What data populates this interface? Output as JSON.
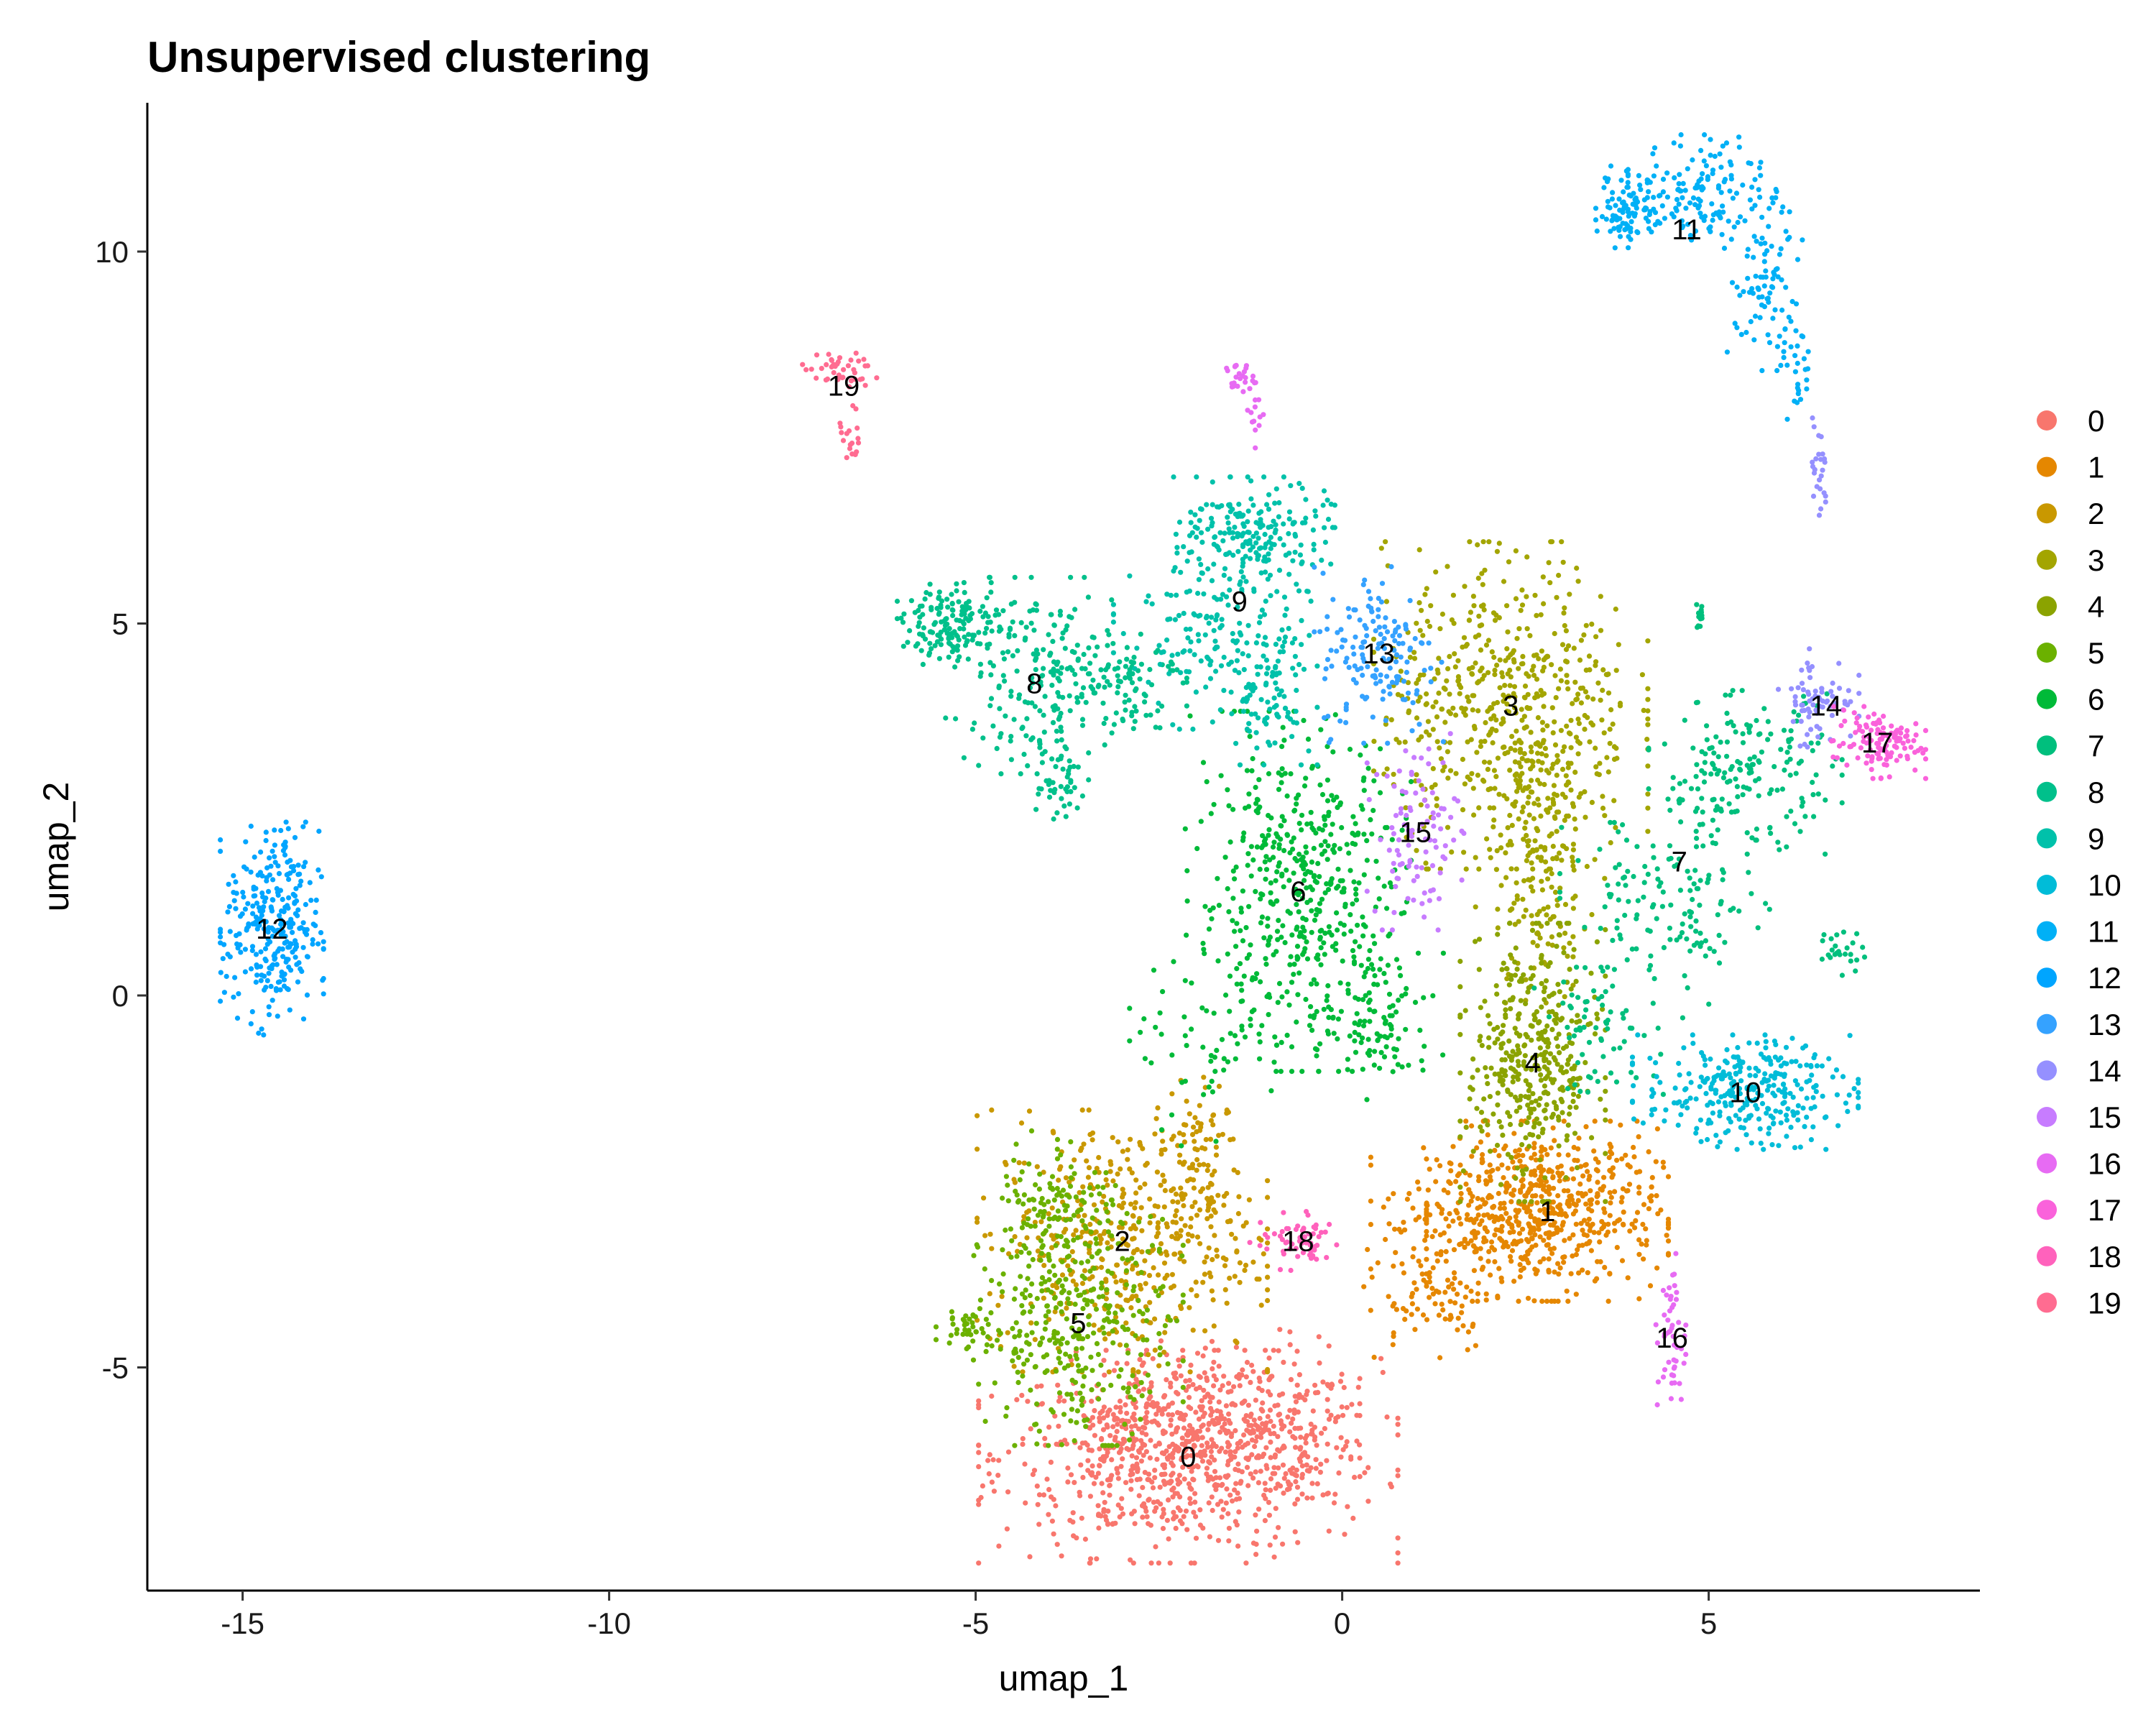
{
  "chart_data": {
    "type": "scatter",
    "title": "Unsupervised clustering",
    "xlabel": "umap_1",
    "ylabel": "umap_2",
    "xlim": [
      -16.3,
      8.7
    ],
    "ylim": [
      -8.0,
      12.0
    ],
    "x_ticks": [
      -15,
      -10,
      -5,
      0,
      5
    ],
    "x_tick_labels": [
      "-15",
      "-10",
      "-5",
      "0",
      "5"
    ],
    "y_ticks": [
      -5,
      0,
      5,
      10
    ],
    "y_tick_labels": [
      "-5",
      "0",
      "5",
      "10"
    ],
    "grid": false,
    "legend_position": "right",
    "clusters": [
      {
        "label": "0",
        "color": "#F8766D",
        "centroid": [
          -2.1,
          -6.2
        ],
        "blobs": [
          [
            -2.1,
            -6.2,
            1.3,
            0.65,
            700
          ],
          [
            -1.3,
            -5.7,
            0.7,
            0.55,
            200
          ],
          [
            -2.9,
            -6.0,
            0.5,
            0.5,
            120
          ]
        ]
      },
      {
        "label": "1",
        "color": "#E58700",
        "centroid": [
          2.8,
          -2.9
        ],
        "blobs": [
          [
            2.8,
            -2.9,
            0.75,
            0.55,
            550
          ],
          [
            1.6,
            -3.0,
            0.55,
            0.45,
            130
          ],
          [
            1.2,
            -4.1,
            0.45,
            0.35,
            70
          ]
        ]
      },
      {
        "label": "2",
        "color": "#C99800",
        "centroid": [
          -3.0,
          -3.3
        ],
        "blobs": [
          [
            -3.0,
            -3.3,
            0.9,
            0.8,
            450
          ],
          [
            -2.0,
            -2.2,
            0.3,
            0.5,
            90
          ]
        ]
      },
      {
        "label": "3",
        "color": "#A3A500",
        "centroid": [
          2.3,
          3.9
        ],
        "blobs": [
          [
            2.3,
            3.9,
            0.85,
            1.0,
            550
          ],
          [
            2.7,
            2.1,
            0.4,
            0.8,
            150
          ],
          [
            2.6,
            1.0,
            0.25,
            0.5,
            50
          ]
        ]
      },
      {
        "label": "4",
        "color": "#8BA300",
        "centroid": [
          2.6,
          -0.9
        ],
        "blobs": [
          [
            2.6,
            -0.9,
            0.45,
            0.85,
            400
          ]
        ]
      },
      {
        "label": "5",
        "color": "#6BB100",
        "centroid": [
          -3.6,
          -4.4
        ],
        "blobs": [
          [
            -3.6,
            -4.4,
            0.65,
            0.75,
            350
          ],
          [
            -3.9,
            -2.7,
            0.4,
            0.4,
            100
          ],
          [
            -5.1,
            -4.5,
            0.2,
            0.15,
            40
          ]
        ]
      },
      {
        "label": "6",
        "color": "#00BA38",
        "centroid": [
          -0.6,
          1.4
        ],
        "blobs": [
          [
            -0.6,
            1.4,
            0.7,
            1.1,
            500
          ],
          [
            0.5,
            -0.3,
            0.4,
            0.5,
            100
          ],
          [
            -1.8,
            -0.7,
            0.5,
            0.6,
            50
          ]
        ]
      },
      {
        "label": "7",
        "color": "#00BF7D",
        "centroid": [
          4.6,
          1.8
        ],
        "blobs": [
          [
            5.5,
            3.0,
            0.6,
            0.5,
            180
          ],
          [
            4.4,
            1.1,
            0.65,
            0.7,
            150
          ],
          [
            3.5,
            -0.5,
            0.4,
            0.4,
            60
          ],
          [
            4.9,
            5.1,
            0.05,
            0.1,
            15
          ],
          [
            6.8,
            0.6,
            0.15,
            0.15,
            25
          ]
        ]
      },
      {
        "label": "8",
        "color": "#00C08B",
        "centroid": [
          -4.2,
          4.2
        ],
        "blobs": [
          [
            -5.3,
            5.0,
            0.35,
            0.25,
            150
          ],
          [
            -4.2,
            4.3,
            0.55,
            0.6,
            180
          ],
          [
            -3.0,
            4.3,
            0.4,
            0.35,
            100
          ],
          [
            -3.9,
            2.9,
            0.2,
            0.3,
            50
          ]
        ]
      },
      {
        "label": "9",
        "color": "#00C1AA",
        "centroid": [
          -1.4,
          5.3
        ],
        "blobs": [
          [
            -1.2,
            6.2,
            0.5,
            0.35,
            200
          ],
          [
            -1.8,
            4.9,
            0.6,
            0.6,
            150
          ],
          [
            -1.0,
            4.2,
            0.3,
            0.5,
            100
          ]
        ]
      },
      {
        "label": "10",
        "color": "#00BCD8",
        "centroid": [
          5.5,
          -1.3
        ],
        "blobs": [
          [
            5.5,
            -1.3,
            0.7,
            0.35,
            300
          ]
        ]
      },
      {
        "label": "11",
        "color": "#00B0F6",
        "centroid": [
          4.7,
          10.3
        ],
        "blobs": [
          [
            3.9,
            10.6,
            0.2,
            0.25,
            90
          ],
          [
            5.0,
            10.8,
            0.5,
            0.35,
            150
          ],
          [
            5.8,
            9.5,
            0.25,
            0.5,
            80
          ],
          [
            6.2,
            8.3,
            0.1,
            0.3,
            25
          ]
        ]
      },
      {
        "label": "12",
        "color": "#00A5FF",
        "centroid": [
          -14.6,
          0.9
        ],
        "blobs": [
          [
            -14.6,
            0.9,
            0.32,
            0.65,
            300
          ]
        ]
      },
      {
        "label": "13",
        "color": "#35A2FF",
        "centroid": [
          0.5,
          4.6
        ],
        "blobs": [
          [
            0.5,
            4.6,
            0.4,
            0.55,
            150
          ]
        ]
      },
      {
        "label": "14",
        "color": "#9590FF",
        "centroid": [
          6.6,
          3.9
        ],
        "blobs": [
          [
            6.5,
            4.0,
            0.25,
            0.3,
            70
          ],
          [
            6.5,
            7.0,
            0.06,
            0.35,
            25
          ]
        ]
      },
      {
        "label": "15",
        "color": "#C77CFF",
        "centroid": [
          1.0,
          2.2
        ],
        "blobs": [
          [
            1.0,
            2.2,
            0.3,
            0.6,
            100
          ]
        ]
      },
      {
        "label": "16",
        "color": "#E76BF3",
        "centroid": [
          4.5,
          -4.6
        ],
        "blobs": [
          [
            4.5,
            -4.6,
            0.1,
            0.55,
            50
          ],
          [
            -1.4,
            8.3,
            0.1,
            0.1,
            25
          ],
          [
            -1.2,
            7.8,
            0.06,
            0.2,
            12
          ]
        ]
      },
      {
        "label": "17",
        "color": "#FA62DB",
        "centroid": [
          7.3,
          3.4
        ],
        "blobs": [
          [
            7.3,
            3.4,
            0.3,
            0.22,
            120
          ]
        ]
      },
      {
        "label": "18",
        "color": "#FF62BC",
        "centroid": [
          -0.6,
          -3.3
        ],
        "blobs": [
          [
            -0.6,
            -3.3,
            0.3,
            0.18,
            60
          ]
        ]
      },
      {
        "label": "19",
        "color": "#FF6C91",
        "centroid": [
          -6.8,
          8.2
        ],
        "blobs": [
          [
            -6.9,
            8.4,
            0.25,
            0.12,
            40
          ],
          [
            -6.7,
            7.6,
            0.08,
            0.35,
            20
          ]
        ]
      }
    ]
  }
}
